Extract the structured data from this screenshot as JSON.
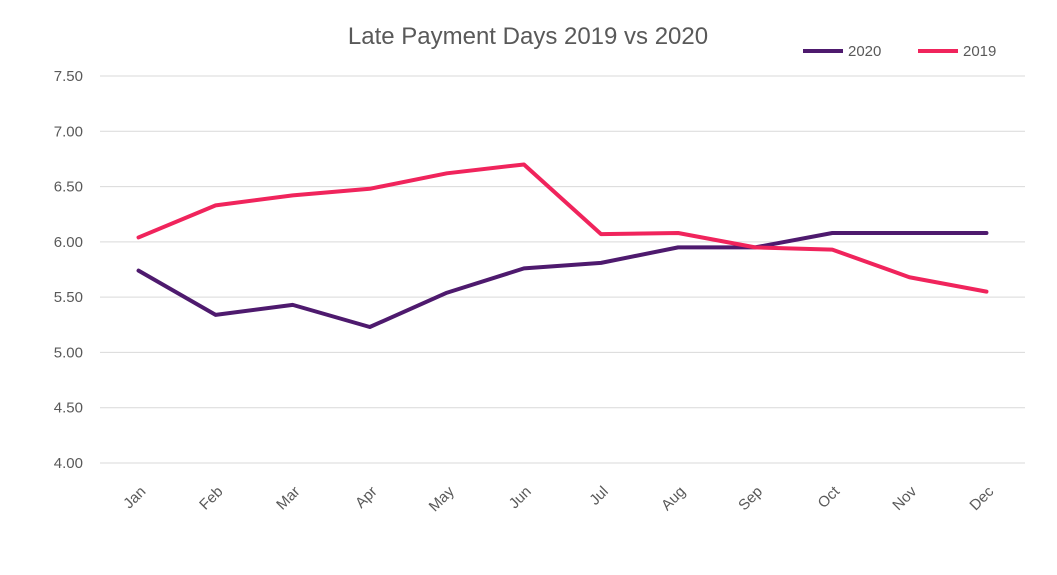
{
  "chart_data": {
    "type": "line",
    "title": "Late Payment Days 2019 vs 2020",
    "xlabel": "",
    "ylabel": "",
    "categories": [
      "Jan",
      "Feb",
      "Mar",
      "Apr",
      "May",
      "Jun",
      "Jul",
      "Aug",
      "Sep",
      "Oct",
      "Nov",
      "Dec"
    ],
    "ylim": [
      4.0,
      7.5
    ],
    "yticks": [
      "4.00",
      "4.50",
      "5.00",
      "5.50",
      "6.00",
      "6.50",
      "7.00",
      "7.50"
    ],
    "grid": true,
    "legend_position": "top-right",
    "series": [
      {
        "name": "2020",
        "color": "#4E1A6E",
        "values": [
          5.74,
          5.34,
          5.43,
          5.23,
          5.54,
          5.76,
          5.81,
          5.95,
          5.95,
          6.08,
          6.08,
          6.08
        ]
      },
      {
        "name": "2019",
        "color": "#F0245C",
        "values": [
          6.04,
          6.33,
          6.42,
          6.48,
          6.62,
          6.7,
          6.07,
          6.08,
          5.95,
          5.93,
          5.68,
          5.55
        ]
      }
    ]
  }
}
